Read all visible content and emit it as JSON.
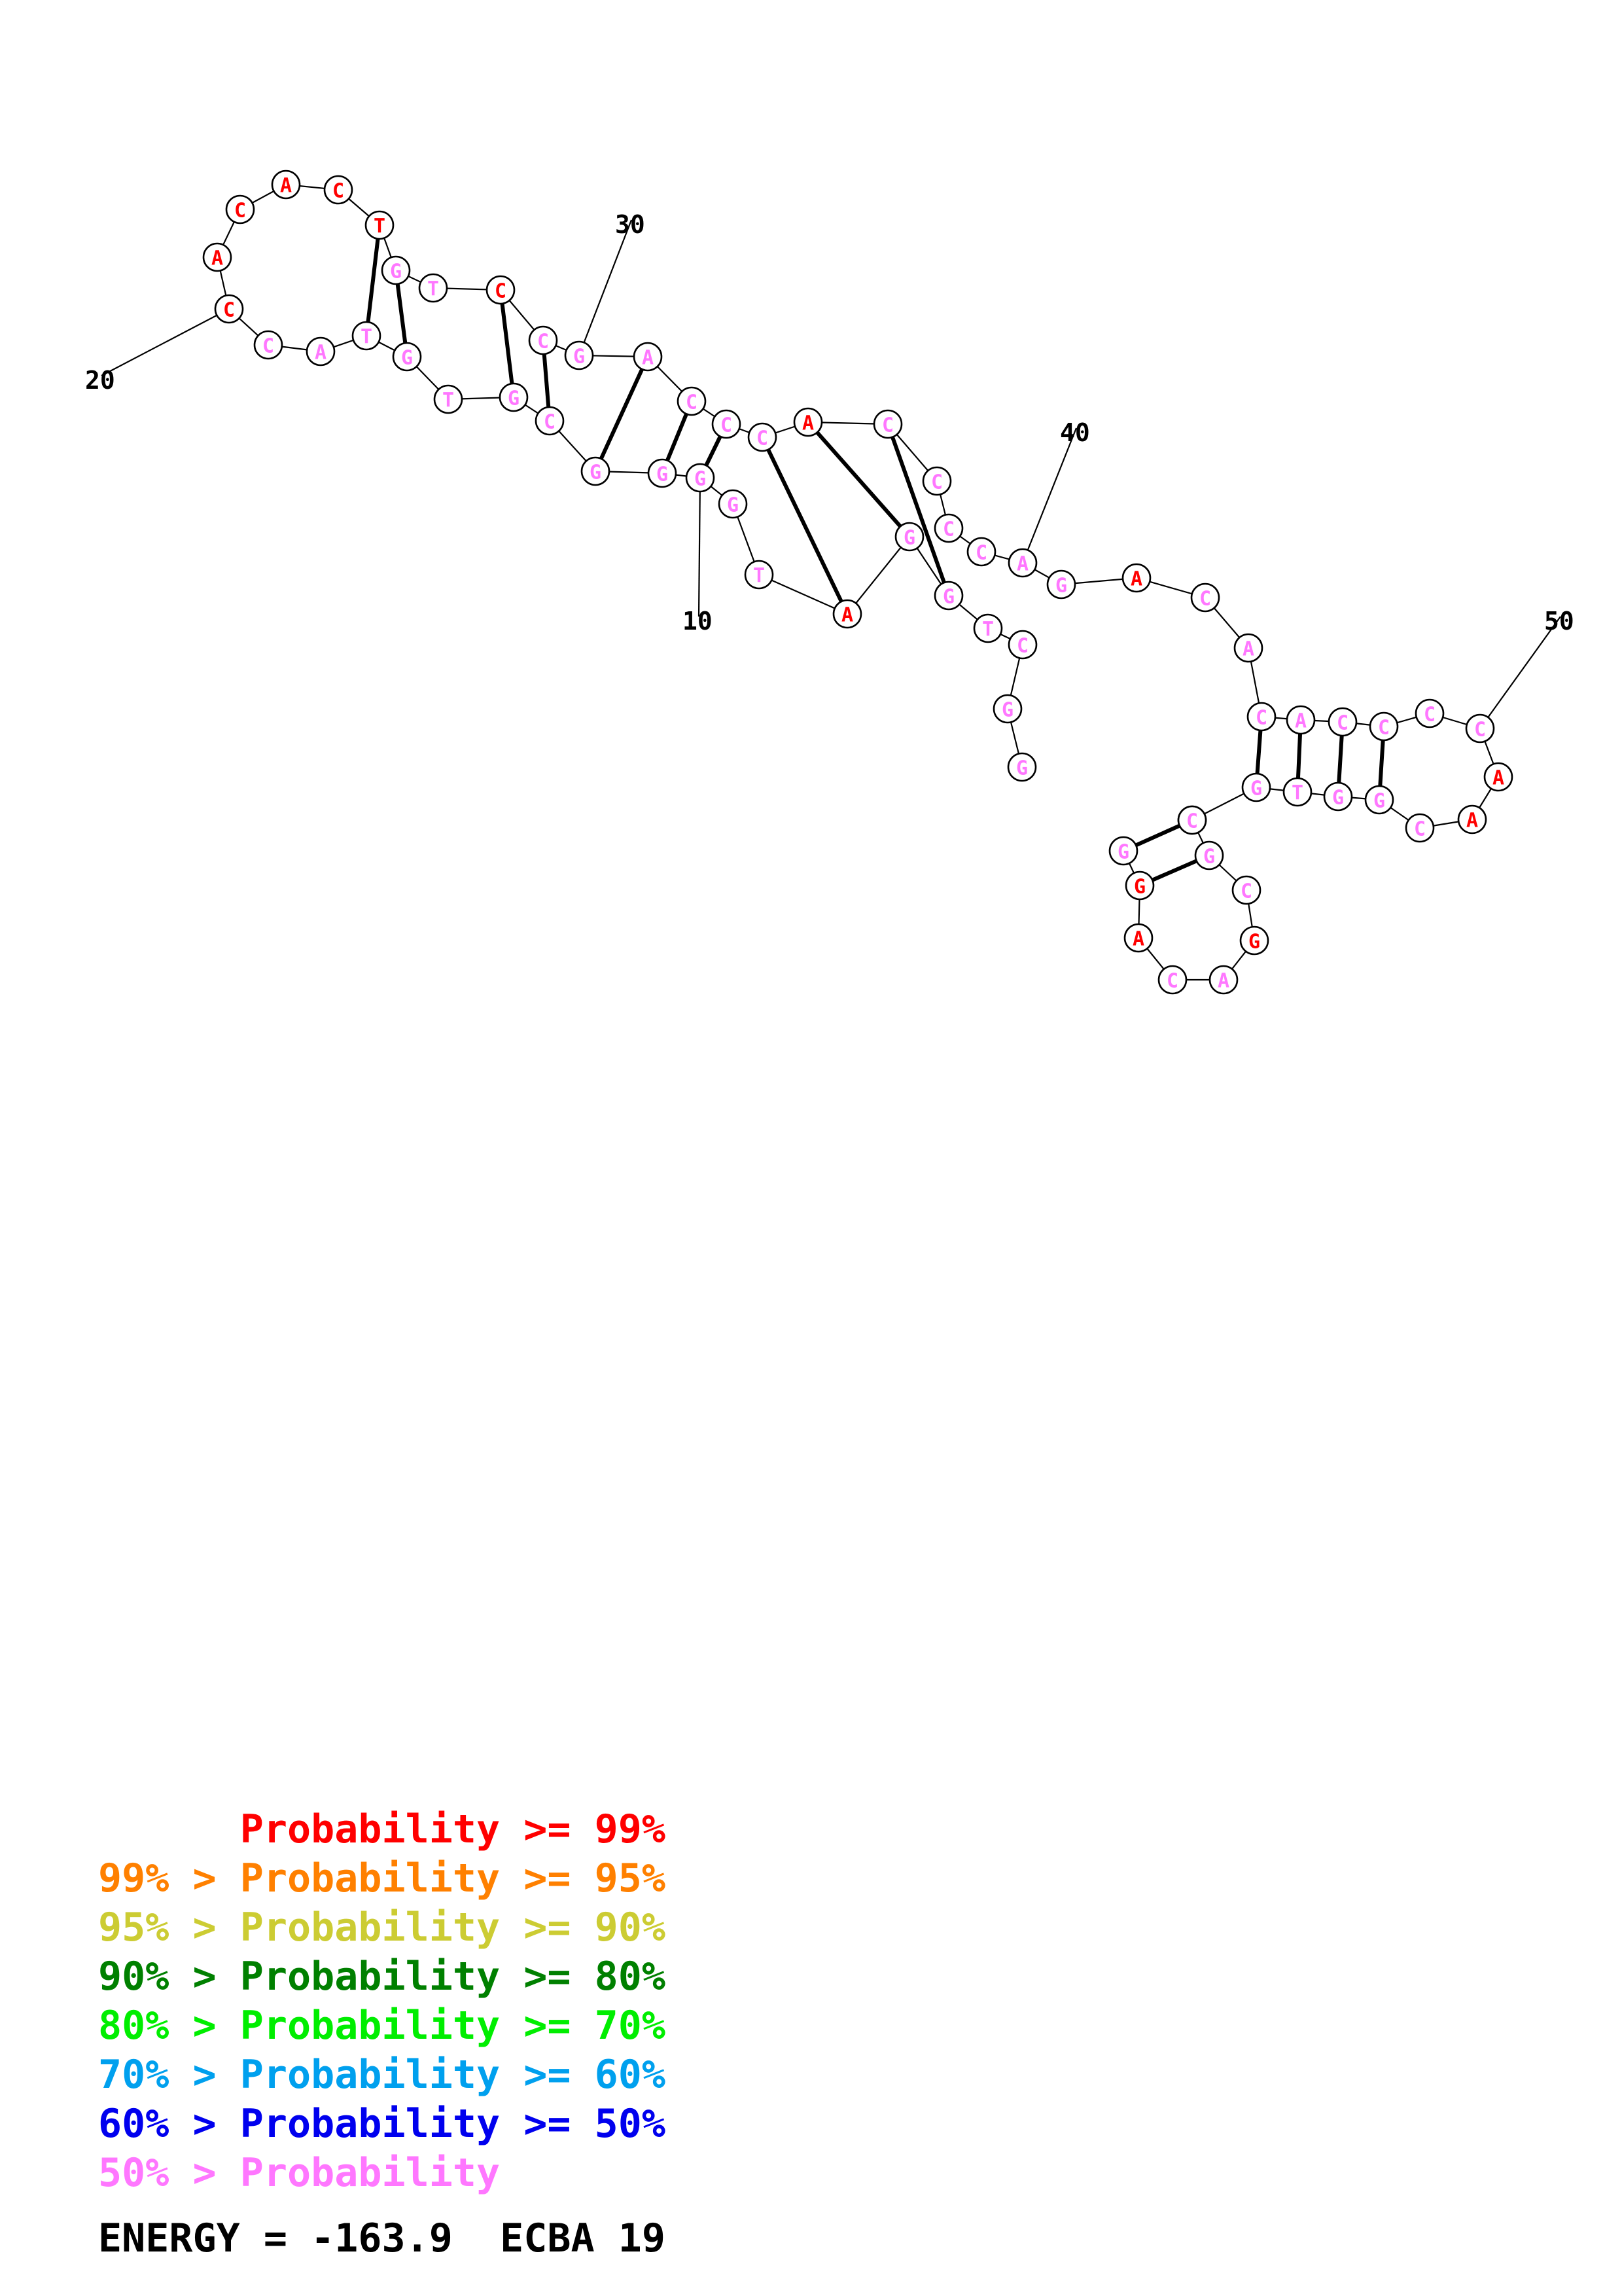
{
  "colors": {
    "red": "#ff0000",
    "orange": "#ff8000",
    "yellow": "#cccc33",
    "dark_green": "#008000",
    "green": "#00ee00",
    "sky": "#00a0ee",
    "blue": "#0000ee",
    "pink": "#ff77ff"
  },
  "structure": {
    "nucleotides": [
      {
        "base": "G",
        "p": "pink"
      },
      {
        "base": "G",
        "p": "pink"
      },
      {
        "base": "C",
        "p": "pink"
      },
      {
        "base": "T",
        "p": "pink"
      },
      {
        "base": "G",
        "p": "pink"
      },
      {
        "base": "G",
        "p": "pink"
      },
      {
        "base": "A",
        "p": "red"
      },
      {
        "base": "T",
        "p": "pink"
      },
      {
        "base": "G",
        "p": "pink"
      },
      {
        "base": "G",
        "p": "pink"
      },
      {
        "base": "G",
        "p": "pink"
      },
      {
        "base": "G",
        "p": "pink"
      },
      {
        "base": "C",
        "p": "pink"
      },
      {
        "base": "G",
        "p": "pink"
      },
      {
        "base": "T",
        "p": "pink"
      },
      {
        "base": "G",
        "p": "pink"
      },
      {
        "base": "T",
        "p": "pink"
      },
      {
        "base": "A",
        "p": "pink"
      },
      {
        "base": "C",
        "p": "pink"
      },
      {
        "base": "C",
        "p": "red"
      },
      {
        "base": "A",
        "p": "red"
      },
      {
        "base": "C",
        "p": "red"
      },
      {
        "base": "A",
        "p": "red"
      },
      {
        "base": "C",
        "p": "red"
      },
      {
        "base": "T",
        "p": "red"
      },
      {
        "base": "G",
        "p": "pink"
      },
      {
        "base": "T",
        "p": "pink"
      },
      {
        "base": "C",
        "p": "red"
      },
      {
        "base": "C",
        "p": "pink"
      },
      {
        "base": "G",
        "p": "pink"
      },
      {
        "base": "A",
        "p": "pink"
      },
      {
        "base": "C",
        "p": "pink"
      },
      {
        "base": "C",
        "p": "pink"
      },
      {
        "base": "C",
        "p": "pink"
      },
      {
        "base": "A",
        "p": "red"
      },
      {
        "base": "C",
        "p": "pink"
      },
      {
        "base": "C",
        "p": "pink"
      },
      {
        "base": "C",
        "p": "pink"
      },
      {
        "base": "C",
        "p": "pink"
      },
      {
        "base": "A",
        "p": "pink"
      },
      {
        "base": "G",
        "p": "pink"
      },
      {
        "base": "A",
        "p": "red"
      },
      {
        "base": "C",
        "p": "pink"
      },
      {
        "base": "A",
        "p": "pink"
      },
      {
        "base": "C",
        "p": "pink"
      },
      {
        "base": "A",
        "p": "pink"
      },
      {
        "base": "C",
        "p": "pink"
      },
      {
        "base": "C",
        "p": "pink"
      },
      {
        "base": "C",
        "p": "pink"
      },
      {
        "base": "C",
        "p": "pink"
      },
      {
        "base": "A",
        "p": "red"
      },
      {
        "base": "A",
        "p": "red"
      },
      {
        "base": "C",
        "p": "pink"
      },
      {
        "base": "G",
        "p": "pink"
      },
      {
        "base": "G",
        "p": "pink"
      },
      {
        "base": "T",
        "p": "pink"
      },
      {
        "base": "G",
        "p": "pink"
      },
      {
        "base": "C",
        "p": "pink"
      },
      {
        "base": "G",
        "p": "pink"
      },
      {
        "base": "C",
        "p": "pink"
      },
      {
        "base": "G",
        "p": "red"
      },
      {
        "base": "A",
        "p": "pink"
      },
      {
        "base": "C",
        "p": "pink"
      },
      {
        "base": "A",
        "p": "red"
      },
      {
        "base": "G",
        "p": "red"
      },
      {
        "base": "G",
        "p": "pink"
      },
      {
        "base": "C",
        "p": "pink"
      }
    ],
    "pairs": [
      [
        5,
        36
      ],
      [
        6,
        35
      ],
      [
        7,
        34
      ],
      [
        10,
        33
      ],
      [
        11,
        32
      ],
      [
        12,
        31
      ],
      [
        13,
        29
      ],
      [
        14,
        28
      ],
      [
        16,
        26
      ],
      [
        17,
        25
      ],
      [
        45,
        57
      ],
      [
        46,
        56
      ],
      [
        47,
        55
      ],
      [
        48,
        54
      ],
      [
        58,
        66
      ],
      [
        59,
        65
      ]
    ],
    "position_labels": [
      "10",
      "20",
      "30",
      "40",
      "50"
    ]
  },
  "legend": {
    "lines": [
      {
        "prefix": "",
        "label": "Probability",
        "op": ">=",
        "value": "99%",
        "color": "red"
      },
      {
        "prefix": "99% >",
        "label": "Probability",
        "op": ">=",
        "value": "95%",
        "color": "orange"
      },
      {
        "prefix": "95% >",
        "label": "Probability",
        "op": ">=",
        "value": "90%",
        "color": "yellow"
      },
      {
        "prefix": "90% >",
        "label": "Probability",
        "op": ">=",
        "value": "80%",
        "color": "dark_green"
      },
      {
        "prefix": "80% >",
        "label": "Probability",
        "op": ">=",
        "value": "70%",
        "color": "green"
      },
      {
        "prefix": "70% >",
        "label": "Probability",
        "op": ">=",
        "value": "60%",
        "color": "sky"
      },
      {
        "prefix": "60% >",
        "label": "Probability",
        "op": ">=",
        "value": "50%",
        "color": "blue"
      },
      {
        "prefix": "50% >",
        "label": "Probability",
        "op": "",
        "value": "",
        "color": "pink"
      }
    ],
    "energy_label": "ENERGY =",
    "energy_value": "-163.9",
    "ecba_label": "ECBA",
    "ecba_value": "19"
  }
}
